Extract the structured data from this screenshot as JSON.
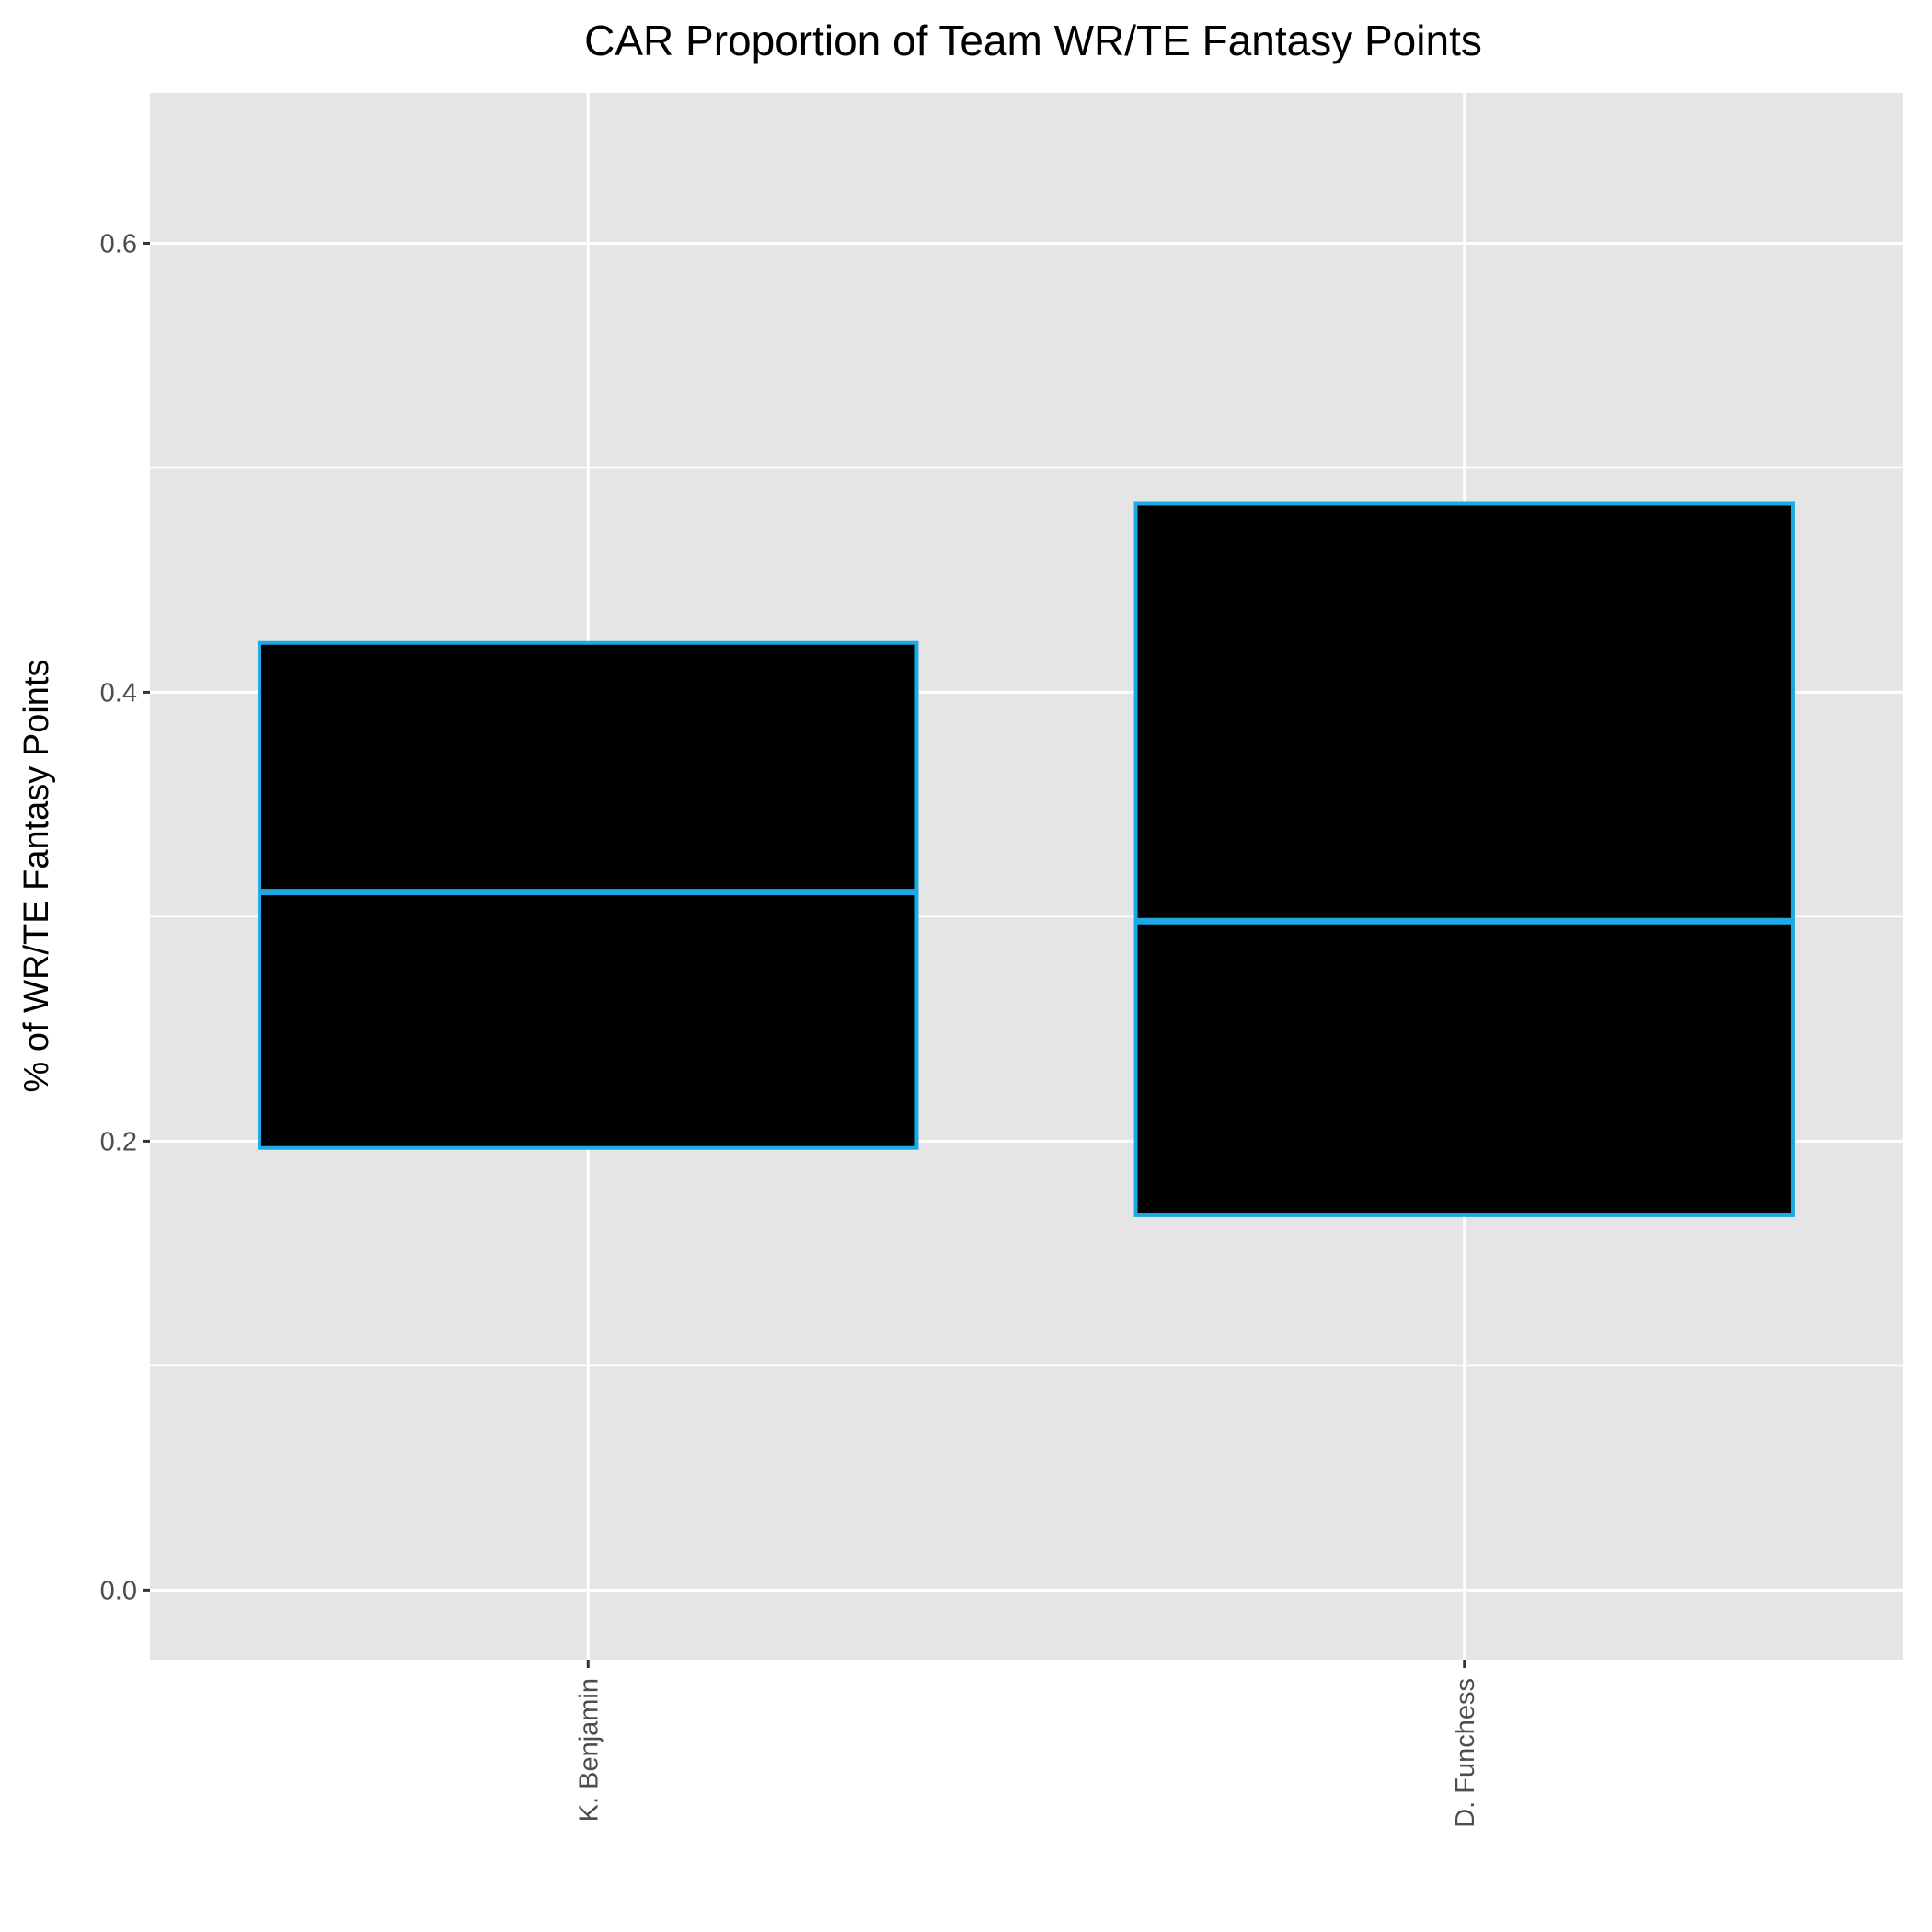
{
  "chart_data": {
    "type": "boxplot",
    "title": "CAR Proportion of Team WR/TE Fantasy Points",
    "xlabel": "",
    "ylabel": "% of WR/TE Fantasy Points",
    "categories": [
      "K. Benjamin",
      "D. Funchess"
    ],
    "boxes": [
      {
        "category": "K. Benjamin",
        "lower": 0.197,
        "median": 0.311,
        "upper": 0.422
      },
      {
        "category": "D. Funchess",
        "lower": 0.167,
        "median": 0.298,
        "upper": 0.484
      }
    ],
    "ylim": [
      -0.031,
      0.667
    ],
    "yticks": [
      0.0,
      0.2,
      0.4,
      0.6
    ],
    "ytick_labels": [
      "0.0",
      "0.2",
      "0.4",
      "0.6"
    ],
    "grid": true,
    "legend": "none",
    "colors": {
      "panel_background": "#e5e5e5",
      "grid": "#ffffff",
      "box_fill": "#000000",
      "box_outline": "#1ca9e6"
    }
  }
}
